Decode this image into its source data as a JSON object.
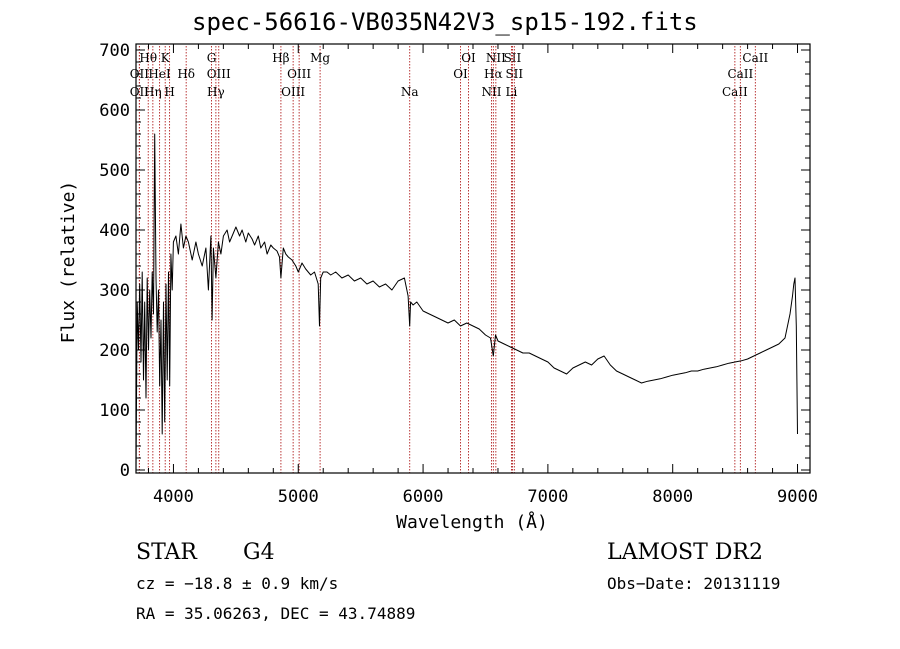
{
  "chart_data": {
    "type": "line",
    "title": "spec-56616-VB035N42V3_sp15-192.fits",
    "xlabel": "Wavelength (Å)",
    "ylabel": "Flux (relative)",
    "xlim": [
      3700,
      9100
    ],
    "ylim": [
      -5,
      710
    ],
    "x_ticks": [
      4000,
      5000,
      6000,
      7000,
      8000,
      9000
    ],
    "y_ticks": [
      0,
      100,
      200,
      300,
      400,
      500,
      600,
      700
    ],
    "grid": false,
    "series": [
      {
        "x": [
          3700,
          3710,
          3720,
          3730,
          3740,
          3750,
          3760,
          3770,
          3780,
          3790,
          3800,
          3810,
          3820,
          3830,
          3840,
          3850,
          3860,
          3870,
          3880,
          3890,
          3900,
          3910,
          3920,
          3930,
          3940,
          3950,
          3960,
          3970,
          3980,
          3990,
          4000,
          4020,
          4040,
          4060,
          4080,
          4100,
          4120,
          4150,
          4180,
          4200,
          4230,
          4260,
          4280,
          4300,
          4310,
          4320,
          4340,
          4360,
          4380,
          4400,
          4430,
          4450,
          4480,
          4500,
          4530,
          4550,
          4580,
          4600,
          4630,
          4650,
          4680,
          4700,
          4730,
          4750,
          4780,
          4800,
          4830,
          4850,
          4861,
          4880,
          4900,
          4920,
          4950,
          4980,
          5000,
          5030,
          5060,
          5100,
          5130,
          5160,
          5170,
          5180,
          5200,
          5230,
          5260,
          5300,
          5350,
          5400,
          5450,
          5500,
          5550,
          5600,
          5650,
          5700,
          5750,
          5800,
          5850,
          5880,
          5893,
          5900,
          5920,
          5950,
          6000,
          6050,
          6100,
          6150,
          6200,
          6250,
          6300,
          6350,
          6400,
          6450,
          6500,
          6540,
          6563,
          6580,
          6600,
          6650,
          6700,
          6750,
          6800,
          6850,
          6900,
          6950,
          7000,
          7050,
          7100,
          7150,
          7200,
          7250,
          7300,
          7350,
          7400,
          7450,
          7500,
          7550,
          7600,
          7650,
          7700,
          7750,
          7800,
          7850,
          7900,
          7950,
          8000,
          8050,
          8100,
          8150,
          8200,
          8250,
          8300,
          8350,
          8400,
          8450,
          8500,
          8550,
          8600,
          8650,
          8700,
          8750,
          8800,
          8850,
          8900,
          8920,
          8940,
          8960,
          8970,
          8980,
          8990,
          9000
        ],
        "y": [
          -2,
          280,
          200,
          310,
          180,
          330,
          150,
          280,
          120,
          320,
          200,
          300,
          220,
          330,
          260,
          560,
          320,
          230,
          300,
          140,
          250,
          60,
          280,
          80,
          310,
          150,
          330,
          140,
          360,
          300,
          380,
          390,
          360,
          410,
          370,
          390,
          380,
          350,
          380,
          360,
          340,
          370,
          300,
          390,
          250,
          370,
          320,
          380,
          360,
          390,
          400,
          380,
          395,
          405,
          390,
          400,
          380,
          395,
          385,
          375,
          390,
          370,
          380,
          360,
          375,
          370,
          365,
          355,
          320,
          370,
          360,
          355,
          350,
          340,
          330,
          345,
          335,
          325,
          330,
          310,
          240,
          320,
          330,
          330,
          325,
          330,
          320,
          325,
          315,
          320,
          310,
          315,
          305,
          310,
          300,
          315,
          320,
          290,
          240,
          280,
          275,
          280,
          265,
          260,
          255,
          250,
          245,
          250,
          240,
          245,
          240,
          235,
          225,
          220,
          190,
          225,
          215,
          210,
          205,
          200,
          195,
          195,
          190,
          185,
          180,
          170,
          165,
          160,
          170,
          175,
          180,
          175,
          185,
          190,
          175,
          165,
          160,
          155,
          150,
          145,
          148,
          150,
          152,
          155,
          158,
          160,
          162,
          165,
          165,
          168,
          170,
          172,
          175,
          178,
          180,
          182,
          185,
          190,
          195,
          200,
          205,
          210,
          220,
          240,
          260,
          290,
          310,
          320,
          240,
          60
        ]
      }
    ],
    "line_markers": [
      {
        "label": "Hθ",
        "x": 3798,
        "row": 1
      },
      {
        "label": "Hη",
        "x": 3835,
        "row": 3
      },
      {
        "label": "HeI",
        "x": 3889,
        "row": 2
      },
      {
        "label": "K",
        "x": 3934,
        "row": 1
      },
      {
        "label": "H",
        "x": 3969,
        "row": 3
      },
      {
        "label": "Hδ",
        "x": 4102,
        "row": 2
      },
      {
        "label": "G",
        "x": 4305,
        "row": 1
      },
      {
        "label": "OIII",
        "x": 4363,
        "row": 2
      },
      {
        "label": "Hγ",
        "x": 4340,
        "row": 3
      },
      {
        "label": "Hβ",
        "x": 4861,
        "row": 1
      },
      {
        "label": "OIII",
        "x": 4959,
        "row": 3
      },
      {
        "label": "OIII",
        "x": 5007,
        "row": 2
      },
      {
        "label": "Mg",
        "x": 5175,
        "row": 1
      },
      {
        "label": "Na",
        "x": 5893,
        "row": 3
      },
      {
        "label": "OI",
        "x": 6300,
        "row": 2
      },
      {
        "label": "OI",
        "x": 6364,
        "row": 1
      },
      {
        "label": "NII",
        "x": 6548,
        "row": 3
      },
      {
        "label": "Hα",
        "x": 6563,
        "row": 2
      },
      {
        "label": "NII",
        "x": 6583,
        "row": 1
      },
      {
        "label": "SII",
        "x": 6716,
        "row": 1
      },
      {
        "label": "SII",
        "x": 6731,
        "row": 2
      },
      {
        "label": "Li",
        "x": 6708,
        "row": 3
      },
      {
        "label": "CaII",
        "x": 8498,
        "row": 3
      },
      {
        "label": "CaII",
        "x": 8542,
        "row": 2
      },
      {
        "label": "CaII",
        "x": 8662,
        "row": 1
      },
      {
        "label": "OII",
        "x": 3727,
        "row": 2
      },
      {
        "label": "OII",
        "x": 3727,
        "row": 3
      }
    ]
  },
  "info": {
    "object_class": "STAR",
    "subclass": "G4",
    "survey": "LAMOST DR2",
    "redshift_text": "cz = −18.8 ± 0.9 km/s",
    "obs_date": "Obs−Date: 20131119",
    "coords": "RA =  35.06263, DEC =  43.74889"
  }
}
